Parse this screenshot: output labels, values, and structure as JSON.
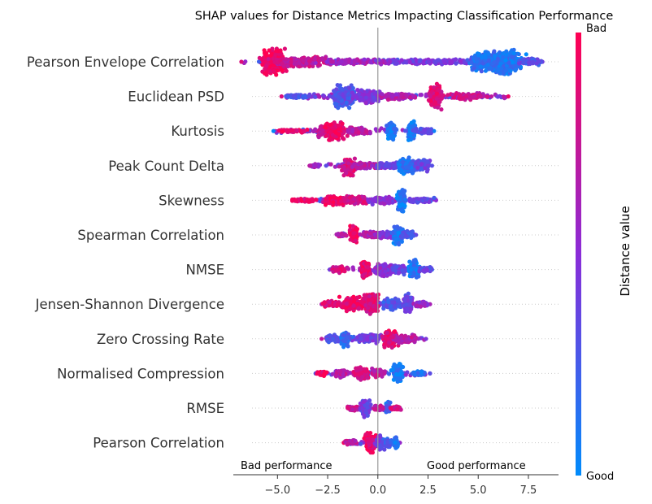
{
  "chart_data": {
    "type": "beeswarm",
    "title": "SHAP values for Distance Metrics Impacting Classification Performance",
    "xlim": [
      -7.2,
      9.0
    ],
    "xticks": [
      -5.0,
      -2.5,
      0.0,
      2.5,
      5.0,
      7.5
    ],
    "xtick_labels": [
      "−5.0",
      "−2.5",
      "0.0",
      "2.5",
      "5.0",
      "7.5"
    ],
    "annotations": {
      "left": "Bad performance",
      "right": "Good performance"
    },
    "colorbar": {
      "label": "Distance value",
      "high_label": "Bad",
      "low_label": "Good",
      "high_color": "#ff0052",
      "mid_color": "#8a2cd8",
      "low_color": "#008bfb"
    },
    "features": [
      {
        "name": "Pearson Envelope Correlation",
        "min": -6.8,
        "max": 8.2,
        "clusters": [
          {
            "x": -5.2,
            "spread": 0.5,
            "width": 16,
            "c": 0.95
          },
          {
            "x": -3.8,
            "spread": 1.2,
            "width": 6,
            "c": 0.75
          },
          {
            "x": -1.0,
            "spread": 1.5,
            "width": 3,
            "c": 0.6
          },
          {
            "x": 2.5,
            "spread": 2.0,
            "width": 3,
            "c": 0.45
          },
          {
            "x": 5.3,
            "spread": 0.6,
            "width": 12,
            "c": 0.15
          },
          {
            "x": 6.3,
            "spread": 0.7,
            "width": 15,
            "c": 0.12
          },
          {
            "x": 7.5,
            "spread": 0.5,
            "width": 4,
            "c": 0.3
          }
        ]
      },
      {
        "name": "Euclidean PSD",
        "min": -4.8,
        "max": 6.5,
        "clusters": [
          {
            "x": -4.0,
            "spread": 0.6,
            "width": 2,
            "c": 0.3
          },
          {
            "x": -1.7,
            "spread": 0.5,
            "width": 14,
            "c": 0.3
          },
          {
            "x": -0.5,
            "spread": 0.6,
            "width": 8,
            "c": 0.45
          },
          {
            "x": 1.0,
            "spread": 0.8,
            "width": 4,
            "c": 0.65
          },
          {
            "x": 2.9,
            "spread": 0.3,
            "width": 16,
            "c": 0.85
          },
          {
            "x": 4.5,
            "spread": 0.8,
            "width": 4,
            "c": 0.75
          }
        ]
      },
      {
        "name": "Kurtosis",
        "min": -5.2,
        "max": 2.8,
        "clusters": [
          {
            "x": -4.3,
            "spread": 0.6,
            "width": 2,
            "c": 0.9
          },
          {
            "x": -2.5,
            "spread": 0.5,
            "width": 8,
            "c": 0.75
          },
          {
            "x": -2.1,
            "spread": 0.4,
            "width": 11,
            "c": 0.92
          },
          {
            "x": -1.0,
            "spread": 0.5,
            "width": 5,
            "c": 0.7
          },
          {
            "x": 0.7,
            "spread": 0.2,
            "width": 11,
            "c": 0.1
          },
          {
            "x": 1.7,
            "spread": 0.2,
            "width": 12,
            "c": 0.1
          },
          {
            "x": 2.3,
            "spread": 0.4,
            "width": 3,
            "c": 0.35
          }
        ]
      },
      {
        "name": "Peak Count Delta",
        "min": -3.4,
        "max": 2.7,
        "clusters": [
          {
            "x": -3.1,
            "spread": 0.2,
            "width": 2,
            "c": 0.6
          },
          {
            "x": -1.4,
            "spread": 0.3,
            "width": 12,
            "c": 0.85
          },
          {
            "x": -0.6,
            "spread": 0.6,
            "width": 4,
            "c": 0.65
          },
          {
            "x": 0.6,
            "spread": 0.6,
            "width": 4,
            "c": 0.4
          },
          {
            "x": 1.5,
            "spread": 0.4,
            "width": 10,
            "c": 0.15
          },
          {
            "x": 2.2,
            "spread": 0.3,
            "width": 8,
            "c": 0.35
          }
        ]
      },
      {
        "name": "Skewness",
        "min": -4.2,
        "max": 2.9,
        "clusters": [
          {
            "x": -3.7,
            "spread": 0.5,
            "width": 2,
            "c": 0.9
          },
          {
            "x": -2.0,
            "spread": 0.5,
            "width": 6,
            "c": 0.95
          },
          {
            "x": -1.1,
            "spread": 0.5,
            "width": 5,
            "c": 0.8
          },
          {
            "x": 0.3,
            "spread": 0.6,
            "width": 5,
            "c": 0.5
          },
          {
            "x": 1.2,
            "spread": 0.2,
            "width": 14,
            "c": 0.1
          },
          {
            "x": 2.2,
            "spread": 0.5,
            "width": 3,
            "c": 0.35
          }
        ]
      },
      {
        "name": "Spearman Correlation",
        "min": -2.0,
        "max": 1.9,
        "clusters": [
          {
            "x": -1.8,
            "spread": 0.2,
            "width": 2,
            "c": 0.7
          },
          {
            "x": -1.2,
            "spread": 0.2,
            "width": 11,
            "c": 0.95
          },
          {
            "x": -0.3,
            "spread": 0.5,
            "width": 4,
            "c": 0.65
          },
          {
            "x": 0.5,
            "spread": 0.4,
            "width": 4,
            "c": 0.45
          },
          {
            "x": 1.0,
            "spread": 0.2,
            "width": 12,
            "c": 0.1
          },
          {
            "x": 1.5,
            "spread": 0.3,
            "width": 5,
            "c": 0.3
          }
        ]
      },
      {
        "name": "NMSE",
        "min": -2.4,
        "max": 2.7,
        "clusters": [
          {
            "x": -2.0,
            "spread": 0.3,
            "width": 4,
            "c": 0.85
          },
          {
            "x": -0.6,
            "spread": 0.2,
            "width": 12,
            "c": 0.9
          },
          {
            "x": 0.3,
            "spread": 0.4,
            "width": 8,
            "c": 0.5
          },
          {
            "x": 1.0,
            "spread": 0.3,
            "width": 6,
            "c": 0.4
          },
          {
            "x": 1.8,
            "spread": 0.2,
            "width": 12,
            "c": 0.1
          },
          {
            "x": 2.4,
            "spread": 0.3,
            "width": 3,
            "c": 0.35
          }
        ]
      },
      {
        "name": "Jensen-Shannon Divergence",
        "min": -2.8,
        "max": 2.6,
        "clusters": [
          {
            "x": -2.3,
            "spread": 0.4,
            "width": 4,
            "c": 0.85
          },
          {
            "x": -1.2,
            "spread": 0.5,
            "width": 9,
            "c": 0.9
          },
          {
            "x": -0.3,
            "spread": 0.3,
            "width": 13,
            "c": 0.85
          },
          {
            "x": 0.6,
            "spread": 0.4,
            "width": 7,
            "c": 0.3
          },
          {
            "x": 1.5,
            "spread": 0.2,
            "width": 13,
            "c": 0.4
          },
          {
            "x": 2.2,
            "spread": 0.3,
            "width": 3,
            "c": 0.55
          }
        ]
      },
      {
        "name": "Zero Crossing Rate",
        "min": -2.8,
        "max": 2.4,
        "clusters": [
          {
            "x": -2.2,
            "spread": 0.3,
            "width": 5,
            "c": 0.3
          },
          {
            "x": -1.6,
            "spread": 0.2,
            "width": 10,
            "c": 0.2
          },
          {
            "x": -0.5,
            "spread": 0.5,
            "width": 6,
            "c": 0.4
          },
          {
            "x": 0.6,
            "spread": 0.3,
            "width": 11,
            "c": 0.9
          },
          {
            "x": 1.4,
            "spread": 0.5,
            "width": 5,
            "c": 0.7
          }
        ]
      },
      {
        "name": "Normalised Compression",
        "min": -3.1,
        "max": 2.6,
        "clusters": [
          {
            "x": -2.8,
            "spread": 0.2,
            "width": 3,
            "c": 0.95
          },
          {
            "x": -1.8,
            "spread": 0.3,
            "width": 5,
            "c": 0.7
          },
          {
            "x": -0.8,
            "spread": 0.3,
            "width": 9,
            "c": 0.85
          },
          {
            "x": 0.0,
            "spread": 0.3,
            "width": 6,
            "c": 0.75
          },
          {
            "x": 1.0,
            "spread": 0.2,
            "width": 12,
            "c": 0.1
          },
          {
            "x": 2.1,
            "spread": 0.3,
            "width": 3,
            "c": 0.15
          }
        ]
      },
      {
        "name": "RMSE",
        "min": -1.5,
        "max": 1.1,
        "clusters": [
          {
            "x": -1.2,
            "spread": 0.3,
            "width": 3,
            "c": 0.75
          },
          {
            "x": -0.6,
            "spread": 0.2,
            "width": 11,
            "c": 0.4
          },
          {
            "x": 0.1,
            "spread": 0.3,
            "width": 4,
            "c": 0.7
          },
          {
            "x": 0.5,
            "spread": 0.1,
            "width": 9,
            "c": 0.2
          },
          {
            "x": 0.9,
            "spread": 0.2,
            "width": 3,
            "c": 0.8
          }
        ]
      },
      {
        "name": "Pearson Correlation",
        "min": -1.7,
        "max": 1.1,
        "clusters": [
          {
            "x": -1.4,
            "spread": 0.3,
            "width": 3,
            "c": 0.75
          },
          {
            "x": -0.3,
            "spread": 0.3,
            "width": 12,
            "c": 0.9
          },
          {
            "x": 0.1,
            "spread": 0.2,
            "width": 9,
            "c": 0.4
          },
          {
            "x": 0.5,
            "spread": 0.2,
            "width": 5,
            "c": 0.25
          },
          {
            "x": 0.9,
            "spread": 0.1,
            "width": 7,
            "c": 0.1
          }
        ]
      }
    ]
  }
}
